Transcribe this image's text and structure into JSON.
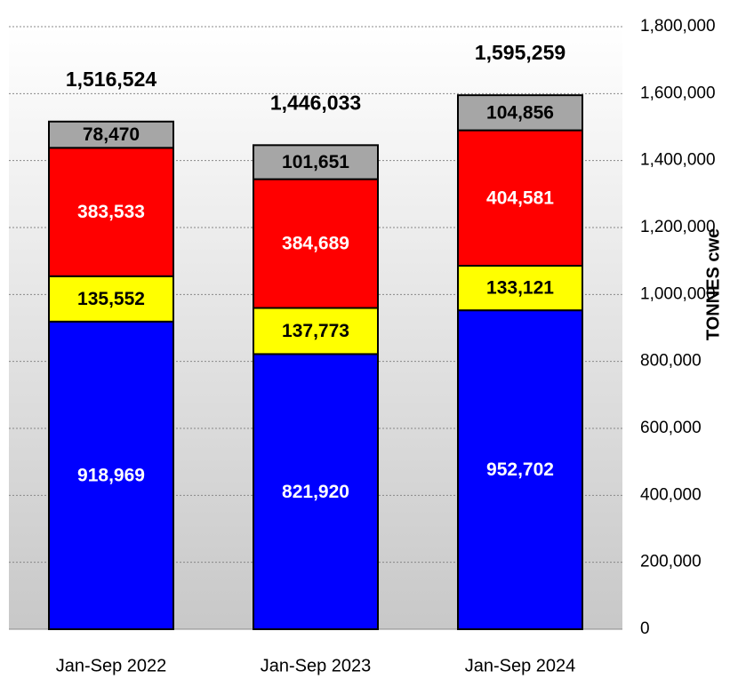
{
  "chart_data": {
    "type": "stacked_bar",
    "categories": [
      "Jan-Sep 2022",
      "Jan-Sep 2023",
      "Jan-Sep 2024"
    ],
    "series": [
      {
        "color": "#0000ff",
        "label_color": "#ffffff",
        "values": [
          918969,
          821920,
          952702
        ],
        "value_labels": [
          "918,969",
          "821,920",
          "952,702"
        ]
      },
      {
        "color": "#ffff00",
        "label_color": "#000000",
        "values": [
          135552,
          137773,
          133121
        ],
        "value_labels": [
          "135,552",
          "137,773",
          "133,121"
        ]
      },
      {
        "color": "#ff0000",
        "label_color": "#ffffff",
        "values": [
          383533,
          384689,
          404581
        ],
        "value_labels": [
          "383,533",
          "384,689",
          "404,581"
        ]
      },
      {
        "color": "#a6a6a6",
        "label_color": "#000000",
        "values": [
          78470,
          101651,
          104856
        ],
        "value_labels": [
          "78,470",
          "101,651",
          "104,856"
        ]
      }
    ],
    "totals": {
      "values": [
        1516524,
        1446033,
        1595259
      ],
      "value_labels": [
        "1,516,524",
        "1,446,033",
        "1,595,259"
      ]
    },
    "y_axis_label": "TONNES cwe",
    "y_axis_side": "right",
    "ylim": [
      0,
      1800000
    ],
    "yticks": [
      0,
      {
        "value": 200000,
        "label": "200,000"
      },
      {
        "value": 400000,
        "label": "400,000"
      },
      {
        "value": 600000,
        "label": "600,000"
      },
      {
        "value": 800000,
        "label": "800,000"
      },
      {
        "value": 1000000,
        "label": "1,000,000"
      },
      {
        "value": 1200000,
        "label": "1,200,000"
      },
      {
        "value": 1400000,
        "label": "1,400,000"
      },
      {
        "value": 1600000,
        "label": "1,600,000"
      },
      {
        "value": 1800000,
        "label": "1,800,000"
      }
    ],
    "grid": true
  }
}
